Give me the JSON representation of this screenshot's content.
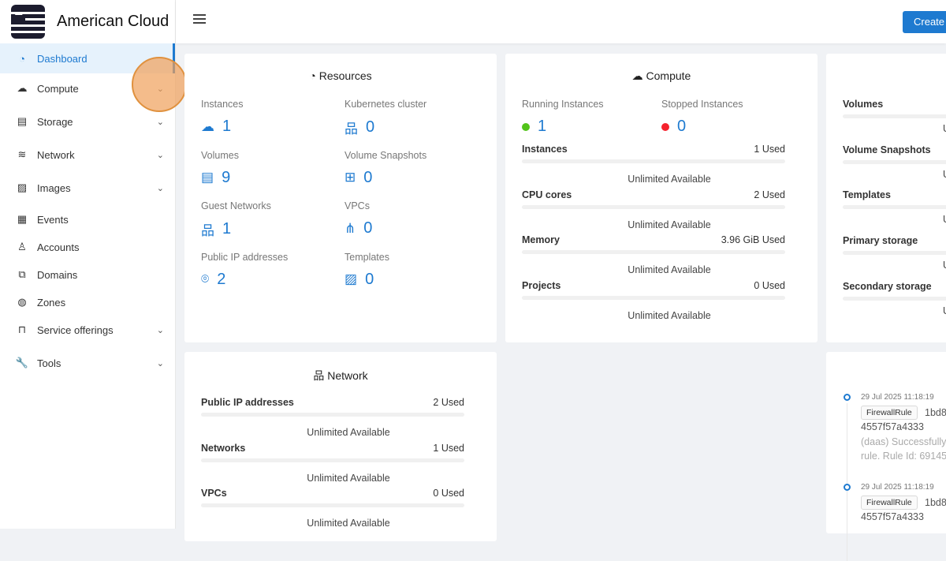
{
  "app": {
    "title": "American Cloud",
    "create_label": "Create"
  },
  "sidebar": {
    "items": [
      {
        "label": "Dashboard",
        "icon": "dashboard-icon",
        "active": true,
        "chevron": false
      },
      {
        "label": "Compute",
        "icon": "cloud-icon",
        "chevron": true
      },
      {
        "label": "Storage",
        "icon": "database-icon",
        "chevron": true
      },
      {
        "label": "Network",
        "icon": "wifi-icon",
        "chevron": true
      },
      {
        "label": "Images",
        "icon": "image-icon",
        "chevron": true
      },
      {
        "label": "Events",
        "icon": "calendar-icon",
        "chevron": false
      },
      {
        "label": "Accounts",
        "icon": "users-icon",
        "chevron": false
      },
      {
        "label": "Domains",
        "icon": "block-icon",
        "chevron": false
      },
      {
        "label": "Zones",
        "icon": "globe-icon",
        "chevron": false
      },
      {
        "label": "Service offerings",
        "icon": "shopping-bag-icon",
        "chevron": true
      },
      {
        "label": "Tools",
        "icon": "wrench-icon",
        "chevron": true
      }
    ]
  },
  "resources": {
    "title": "Resources",
    "items": [
      {
        "label": "Instances",
        "value": "1",
        "icon": "cloud-server-icon"
      },
      {
        "label": "Kubernetes cluster",
        "value": "0",
        "icon": "cluster-icon"
      },
      {
        "label": "Volumes",
        "value": "9",
        "icon": "hdd-icon"
      },
      {
        "label": "Volume Snapshots",
        "value": "0",
        "icon": "snapshot-icon"
      },
      {
        "label": "Guest Networks",
        "value": "1",
        "icon": "network-icon"
      },
      {
        "label": "VPCs",
        "value": "0",
        "icon": "vpc-icon"
      },
      {
        "label": "Public IP addresses",
        "value": "2",
        "icon": "location-icon"
      },
      {
        "label": "Templates",
        "value": "0",
        "icon": "picture-icon"
      }
    ]
  },
  "compute": {
    "title": "Compute",
    "running_label": "Running Instances",
    "running": "1",
    "stopped_label": "Stopped Instances",
    "stopped": "0",
    "running_color": "#52c41a",
    "stopped_color": "#f5222d",
    "rows": [
      {
        "label": "Instances",
        "used": "1 Used",
        "avail": "Unlimited Available"
      },
      {
        "label": "CPU cores",
        "used": "2 Used",
        "avail": "Unlimited Available"
      },
      {
        "label": "Memory",
        "used": "3.96 GiB Used",
        "avail": "Unlimited Available"
      },
      {
        "label": "Projects",
        "used": "0 Used",
        "avail": "Unlimited Available"
      }
    ]
  },
  "storage": {
    "rows": [
      {
        "label": "Volumes",
        "avail": "U"
      },
      {
        "label": "Volume Snapshots",
        "avail": "U"
      },
      {
        "label": "Templates",
        "avail": "U"
      },
      {
        "label": "Primary storage",
        "avail": "U"
      },
      {
        "label": "Secondary storage",
        "avail": "U"
      }
    ]
  },
  "network": {
    "title": "Network",
    "rows": [
      {
        "label": "Public IP addresses",
        "used": "2 Used",
        "avail": "Unlimited Available"
      },
      {
        "label": "Networks",
        "used": "1 Used",
        "avail": "Unlimited Available"
      },
      {
        "label": "VPCs",
        "used": "0 Used",
        "avail": "Unlimited Available"
      }
    ]
  },
  "events": [
    {
      "time": "29 Jul 2025 11:18:19",
      "tag": "FirewallRule",
      "id1": "1bd8",
      "id2": "4557f57a4333",
      "msg1": "(daas) Successfully",
      "msg2": "rule. Rule Id: 69145"
    },
    {
      "time": "29 Jul 2025 11:18:19",
      "tag": "FirewallRule",
      "id1": "1bd8",
      "id2": "4557f57a4333"
    }
  ],
  "accent": "#1e7ad0"
}
